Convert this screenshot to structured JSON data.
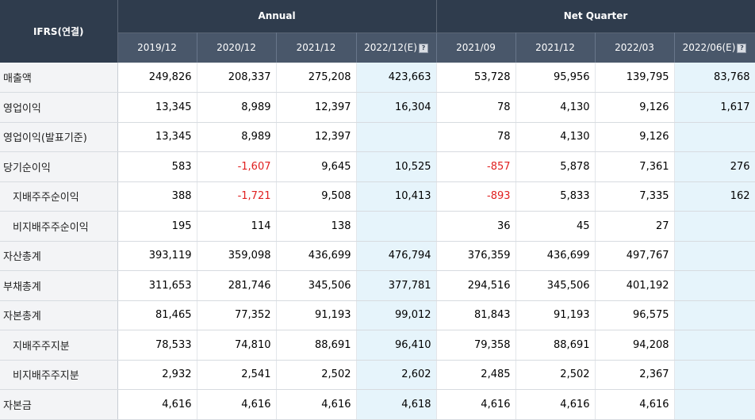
{
  "header": {
    "corner_label": "IFRS(연결)",
    "group_annual": "Annual",
    "group_quarter": "Net Quarter",
    "annual_periods": [
      "2019/12",
      "2020/12",
      "2021/12",
      "2022/12(E)"
    ],
    "quarter_periods": [
      "2021/09",
      "2021/12",
      "2022/03",
      "2022/06(E)"
    ],
    "help_icon": "question-icon"
  },
  "rows": [
    {
      "label": "매출액",
      "sub": false,
      "values": [
        "249,826",
        "208,337",
        "275,208",
        "423,663",
        "53,728",
        "95,956",
        "139,795",
        "83,768"
      ]
    },
    {
      "label": "영업이익",
      "sub": false,
      "values": [
        "13,345",
        "8,989",
        "12,397",
        "16,304",
        "78",
        "4,130",
        "9,126",
        "1,617"
      ]
    },
    {
      "label": "영업이익(발표기준)",
      "sub": false,
      "values": [
        "13,345",
        "8,989",
        "12,397",
        "",
        "78",
        "4,130",
        "9,126",
        ""
      ]
    },
    {
      "label": "당기순이익",
      "sub": false,
      "values": [
        "583",
        "-1,607",
        "9,645",
        "10,525",
        "-857",
        "5,878",
        "7,361",
        "276"
      ]
    },
    {
      "label": "지배주주순이익",
      "sub": true,
      "values": [
        "388",
        "-1,721",
        "9,508",
        "10,413",
        "-893",
        "5,833",
        "7,335",
        "162"
      ]
    },
    {
      "label": "비지배주주순이익",
      "sub": true,
      "values": [
        "195",
        "114",
        "138",
        "",
        "36",
        "45",
        "27",
        ""
      ]
    },
    {
      "label": "자산총계",
      "sub": false,
      "values": [
        "393,119",
        "359,098",
        "436,699",
        "476,794",
        "376,359",
        "436,699",
        "497,767",
        ""
      ]
    },
    {
      "label": "부채총계",
      "sub": false,
      "values": [
        "311,653",
        "281,746",
        "345,506",
        "377,781",
        "294,516",
        "345,506",
        "401,192",
        ""
      ]
    },
    {
      "label": "자본총계",
      "sub": false,
      "values": [
        "81,465",
        "77,352",
        "91,193",
        "99,012",
        "81,843",
        "91,193",
        "96,575",
        ""
      ]
    },
    {
      "label": "지배주주지분",
      "sub": true,
      "values": [
        "78,533",
        "74,810",
        "88,691",
        "96,410",
        "79,358",
        "88,691",
        "94,208",
        ""
      ]
    },
    {
      "label": "비지배주주지분",
      "sub": true,
      "values": [
        "2,932",
        "2,541",
        "2,502",
        "2,602",
        "2,485",
        "2,502",
        "2,367",
        ""
      ]
    },
    {
      "label": "자본금",
      "sub": false,
      "values": [
        "4,616",
        "4,616",
        "4,616",
        "4,618",
        "4,616",
        "4,616",
        "4,616",
        ""
      ]
    }
  ],
  "colors": {
    "header_dark": "#2f3c4d",
    "header_mid": "#49576a",
    "estimate_bg": "#e6f4fb",
    "negative": "#e02020"
  }
}
